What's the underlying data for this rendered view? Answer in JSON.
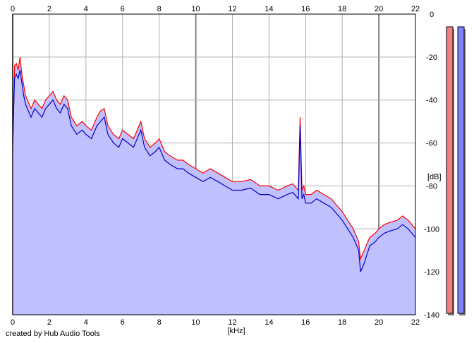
{
  "chart_data": {
    "type": "area",
    "x_unit_label": "[kHz]",
    "y_unit_label": "[dB]",
    "xlim": [
      0,
      22
    ],
    "ylim": [
      -140,
      0
    ],
    "x_ticks": [
      0,
      2,
      4,
      6,
      8,
      10,
      12,
      14,
      16,
      18,
      20,
      22
    ],
    "y_ticks": [
      0,
      -20,
      -40,
      -60,
      -80,
      -100,
      -120,
      -140
    ],
    "grid": true,
    "fill_color": "#c0c0ff",
    "series": [
      {
        "color": "#ff0000",
        "x": [
          0,
          0.1,
          0.2,
          0.3,
          0.4,
          0.5,
          0.6,
          0.7,
          0.8,
          1,
          1.2,
          1.4,
          1.6,
          1.8,
          2,
          2.2,
          2.4,
          2.6,
          2.8,
          3,
          3.2,
          3.5,
          3.8,
          4,
          4.3,
          4.6,
          4.8,
          5,
          5.2,
          5.5,
          5.8,
          6,
          6.3,
          6.6,
          7,
          7.2,
          7.5,
          7.8,
          8,
          8.3,
          8.6,
          9,
          9.3,
          9.6,
          10,
          10.4,
          10.8,
          11.2,
          11.6,
          12,
          12.5,
          13,
          13.5,
          14,
          14.5,
          15,
          15.3,
          15.6,
          15.7,
          15.8,
          15.9,
          16,
          16.3,
          16.6,
          17,
          17.4,
          17.8,
          18,
          18.3,
          18.6,
          18.9,
          19,
          19.2,
          19.5,
          19.8,
          20,
          20.3,
          20.6,
          21,
          21.3,
          21.6,
          22
        ],
        "y": [
          -65,
          -24,
          -23,
          -26,
          -20,
          -28,
          -33,
          -38,
          -40,
          -44,
          -40,
          -42,
          -44,
          -40,
          -38,
          -36,
          -40,
          -42,
          -38,
          -40,
          -48,
          -52,
          -50,
          -52,
          -54,
          -48,
          -45,
          -44,
          -52,
          -56,
          -58,
          -54,
          -56,
          -58,
          -50,
          -58,
          -62,
          -60,
          -58,
          -64,
          -66,
          -68,
          -68,
          -70,
          -72,
          -74,
          -72,
          -74,
          -76,
          -78,
          -78,
          -77,
          -80,
          -80,
          -82,
          -80,
          -79,
          -82,
          -48,
          -82,
          -80,
          -84,
          -84,
          -82,
          -84,
          -86,
          -90,
          -92,
          -96,
          -100,
          -106,
          -114,
          -110,
          -104,
          -102,
          -100,
          -98,
          -97,
          -96,
          -94,
          -96,
          -100
        ]
      },
      {
        "color": "#0000cc",
        "x": [
          0,
          0.1,
          0.2,
          0.3,
          0.4,
          0.5,
          0.6,
          0.7,
          0.8,
          1,
          1.2,
          1.4,
          1.6,
          1.8,
          2,
          2.2,
          2.4,
          2.6,
          2.8,
          3,
          3.2,
          3.5,
          3.8,
          4,
          4.3,
          4.6,
          4.8,
          5,
          5.2,
          5.5,
          5.8,
          6,
          6.3,
          6.6,
          7,
          7.2,
          7.5,
          7.8,
          8,
          8.3,
          8.6,
          9,
          9.3,
          9.6,
          10,
          10.4,
          10.8,
          11.2,
          11.6,
          12,
          12.5,
          13,
          13.5,
          14,
          14.5,
          15,
          15.3,
          15.6,
          15.7,
          15.8,
          15.9,
          16,
          16.3,
          16.6,
          17,
          17.4,
          17.8,
          18,
          18.3,
          18.6,
          18.9,
          19,
          19.2,
          19.5,
          19.8,
          20,
          20.3,
          20.6,
          21,
          21.3,
          21.6,
          22
        ],
        "y": [
          -60,
          -30,
          -28,
          -30,
          -26,
          -32,
          -38,
          -42,
          -44,
          -48,
          -44,
          -46,
          -48,
          -44,
          -42,
          -40,
          -44,
          -46,
          -42,
          -44,
          -52,
          -56,
          -54,
          -56,
          -58,
          -52,
          -50,
          -48,
          -56,
          -60,
          -62,
          -58,
          -60,
          -62,
          -54,
          -62,
          -66,
          -64,
          -62,
          -68,
          -70,
          -72,
          -72,
          -74,
          -76,
          -78,
          -76,
          -78,
          -80,
          -82,
          -82,
          -81,
          -84,
          -84,
          -86,
          -84,
          -83,
          -86,
          -52,
          -86,
          -84,
          -88,
          -88,
          -86,
          -88,
          -90,
          -94,
          -96,
          -100,
          -104,
          -110,
          -120,
          -116,
          -108,
          -106,
          -104,
          -102,
          -101,
          -100,
          -98,
          -100,
          -104
        ]
      }
    ],
    "meters": [
      {
        "color": "#f08080"
      },
      {
        "color": "#8080ff"
      }
    ]
  },
  "footer": {
    "credit": "created by Hub Audio Tools"
  }
}
